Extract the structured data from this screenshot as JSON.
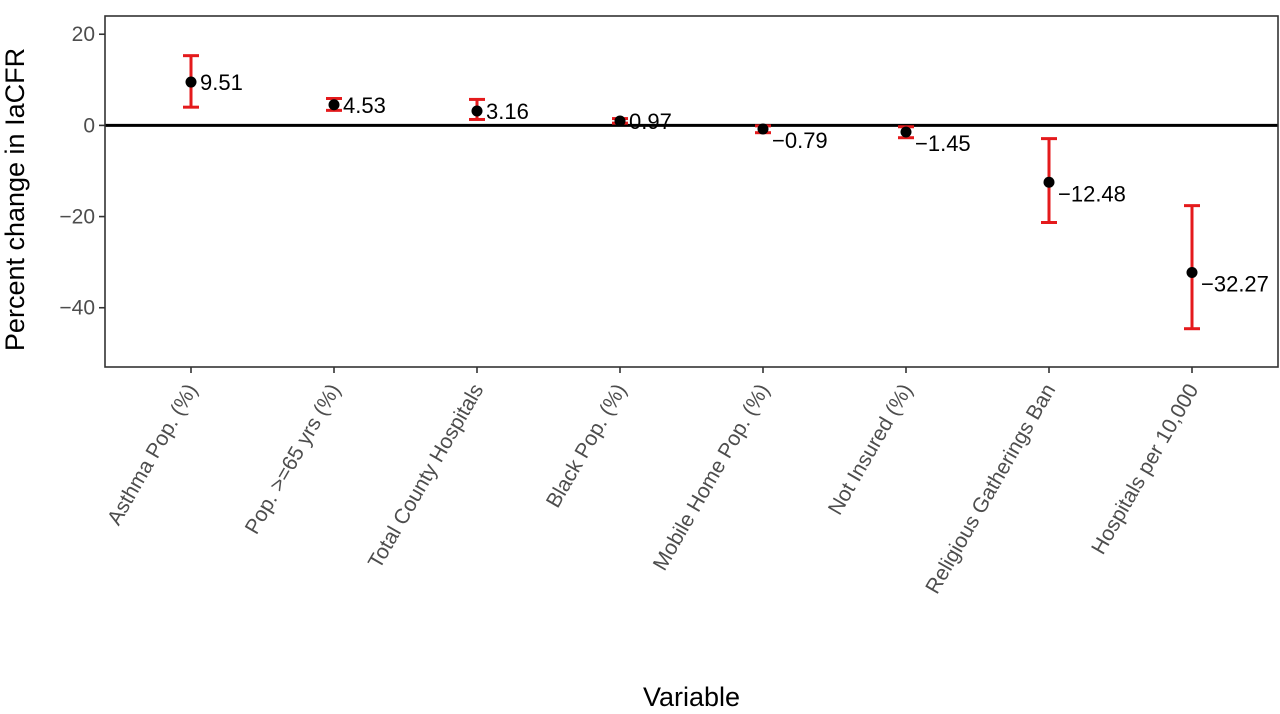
{
  "chart_data": {
    "type": "scatter",
    "title": "",
    "xlabel": "Variable",
    "ylabel": "Percent change in IaCFR",
    "ylim": [
      -53,
      24
    ],
    "yticks": [
      20,
      0,
      -20,
      -40
    ],
    "ytick_labels": [
      "20",
      "0",
      "−20",
      "−40"
    ],
    "reference_line": 0,
    "grid": false,
    "legend": "none",
    "point_color": "#000000",
    "errorbar_color": "#e41a1c",
    "categories": [
      "Asthma Pop. (%)",
      "Pop. >=65 yrs (%)",
      "Total County Hospitals",
      "Black Pop. (%)",
      "Mobile Home Pop. (%)",
      "Not Insured (%)",
      "Religious Gatherings Ban",
      "Hospitals per 10,000"
    ],
    "values": [
      9.51,
      4.53,
      3.16,
      0.97,
      -0.79,
      -1.45,
      -12.48,
      -32.27
    ],
    "labels": [
      "9.51",
      "4.53",
      "3.16",
      "0.97",
      "−0.79",
      "−1.45",
      "−12.48",
      "−32.27"
    ],
    "lower": [
      4.0,
      3.3,
      1.3,
      0.5,
      -1.6,
      -2.7,
      -21.3,
      -44.6
    ],
    "upper": [
      15.3,
      5.9,
      5.7,
      1.5,
      -0.1,
      -0.3,
      -2.9,
      -17.6
    ]
  }
}
